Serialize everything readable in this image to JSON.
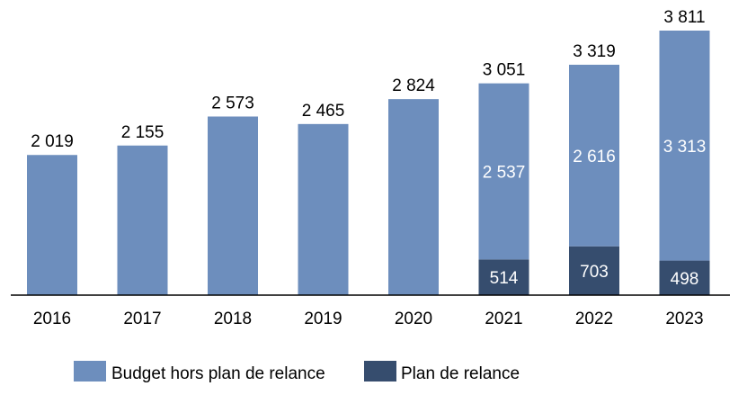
{
  "chart_data": {
    "type": "bar",
    "stacked": true,
    "title": "",
    "xlabel": "",
    "ylabel": "",
    "categories": [
      "2016",
      "2017",
      "2018",
      "2019",
      "2020",
      "2021",
      "2022",
      "2023"
    ],
    "series": [
      {
        "name": "Plan de relance",
        "color": "#364d6e",
        "values": [
          null,
          null,
          null,
          null,
          null,
          514,
          703,
          498
        ],
        "labels": [
          "",
          "",
          "",
          "",
          "",
          "514",
          "703",
          "498"
        ]
      },
      {
        "name": "Budget hors plan de relance",
        "color": "#6d8ebd",
        "values": [
          2019,
          2155,
          2573,
          2465,
          2824,
          2537,
          2616,
          3313
        ],
        "labels": [
          "",
          "",
          "",
          "",
          "",
          "2 537",
          "2 616",
          "3 313"
        ]
      }
    ],
    "totals": [
      2019,
      2155,
      2573,
      2465,
      2824,
      3051,
      3319,
      3811
    ],
    "total_labels": [
      "2 019",
      "2 155",
      "2 573",
      "2 465",
      "2 824",
      "3 051",
      "3 319",
      "3 811"
    ],
    "ylim": [
      0,
      3811
    ],
    "grid": false,
    "legend": {
      "placement": "bottom",
      "entries": [
        "Budget hors plan de relance",
        "Plan de relance"
      ]
    }
  }
}
